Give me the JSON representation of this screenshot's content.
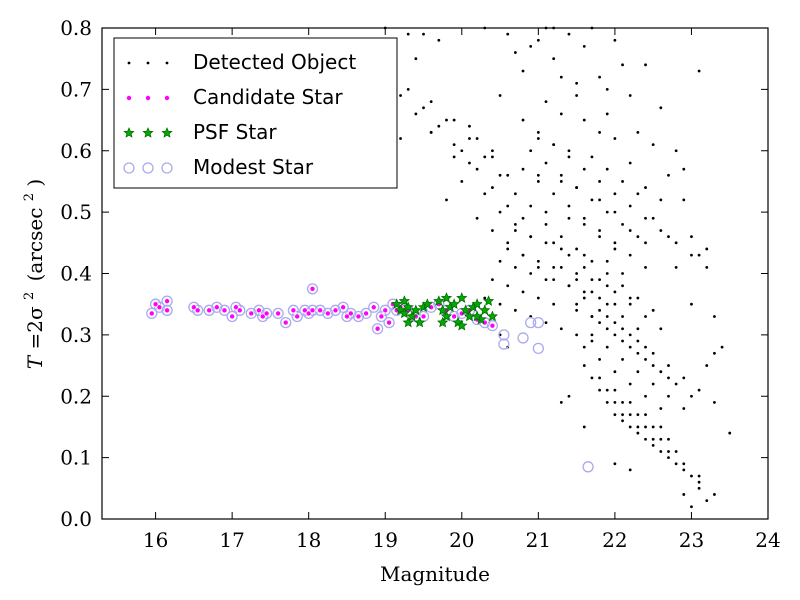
{
  "chart_data": {
    "type": "scatter",
    "xlabel": "Magnitude",
    "ylabel": {
      "main": "T",
      "equals": "=2σ",
      "sup": "2",
      "units": "(arcsec",
      "units_sup": "2",
      "units_close": ")"
    },
    "xlim": [
      15.3,
      24.0
    ],
    "ylim": [
      0.0,
      0.8
    ],
    "xticks": [
      16,
      17,
      18,
      19,
      20,
      21,
      22,
      23,
      24
    ],
    "yticks": [
      0.0,
      0.1,
      0.2,
      0.3,
      0.4,
      0.5,
      0.6,
      0.7,
      0.8
    ],
    "xtick_labels": [
      "16",
      "17",
      "18",
      "19",
      "20",
      "21",
      "22",
      "23",
      "24"
    ],
    "ytick_labels": [
      "0.0",
      "0.1",
      "0.2",
      "0.3",
      "0.4",
      "0.5",
      "0.6",
      "0.7",
      "0.8"
    ],
    "grid": false,
    "legend_position": "top-left",
    "series": [
      {
        "name": "Detected Object",
        "marker": "dot",
        "color": "#000000",
        "x": [
          19.0,
          19.1,
          19.1,
          19.2,
          19.3,
          19.4,
          19.5,
          19.6,
          19.7,
          19.9,
          20.1,
          20.3,
          20.4,
          20.5,
          20.6,
          20.7,
          20.8,
          20.9,
          21.0,
          21.1,
          21.2,
          21.4,
          21.5,
          21.7,
          21.9,
          22.0,
          22.2,
          22.4,
          22.6,
          22.8,
          23.1,
          22.9,
          23.0,
          23.2,
          23.3,
          23.4,
          23.5,
          21.2,
          21.3,
          21.5,
          21.6,
          21.8,
          21.9,
          22.1,
          22.3,
          22.5,
          22.7,
          22.9,
          23.1,
          23.3,
          21.1,
          21.3,
          21.6,
          21.8,
          22.0,
          22.2,
          22.4,
          22.6,
          22.8,
          23.0,
          23.2,
          21.0,
          21.2,
          21.4,
          21.7,
          21.9,
          22.1,
          22.3,
          22.5,
          22.7,
          20.8,
          21.0,
          21.3,
          21.5,
          21.8,
          22.0,
          22.2,
          22.4,
          20.9,
          21.1,
          21.4,
          21.6,
          21.8,
          22.0,
          20.7,
          20.9,
          21.1,
          21.3,
          21.6,
          21.9,
          22.1,
          20.6,
          20.8,
          21.0,
          21.2,
          21.5,
          21.7,
          21.9,
          22.2,
          20.5,
          20.7,
          20.9,
          21.1,
          21.4,
          21.6,
          21.8,
          22.0,
          20.4,
          20.6,
          20.8,
          21.0,
          21.2,
          21.5,
          21.7,
          20.3,
          20.5,
          20.7,
          20.9,
          21.1,
          21.3,
          21.5,
          21.7,
          19.8,
          20.0,
          20.2,
          20.4,
          20.6,
          20.8,
          21.0,
          21.2,
          19.6,
          19.9,
          20.1,
          20.3,
          20.5,
          20.7,
          20.9,
          19.4,
          19.7,
          20.0,
          20.2,
          20.4,
          20.6,
          20.8,
          19.2,
          19.5,
          19.8,
          20.1,
          20.3,
          20.5,
          20.7,
          18.9,
          19.3,
          19.6,
          19.9,
          20.2,
          20.4,
          20.6,
          21.9,
          22.1,
          22.3,
          22.5,
          22.7,
          22.9,
          23.1,
          23.3,
          21.8,
          22.0,
          22.2,
          22.4,
          22.6,
          22.8,
          23.0,
          21.7,
          21.9,
          22.1,
          22.3,
          22.5,
          22.7,
          22.9,
          21.6,
          21.8,
          22.0,
          22.2,
          22.4,
          22.6,
          21.5,
          21.7,
          21.9,
          22.1,
          22.3,
          22.5,
          22.7,
          21.4,
          21.6,
          21.8,
          22.0,
          22.2,
          22.4,
          21.3,
          21.5,
          21.7,
          21.9,
          22.1,
          22.3,
          21.2,
          21.4,
          21.6,
          21.8,
          22.0,
          22.2,
          22.4,
          22.6,
          21.1,
          21.3,
          21.5,
          21.7,
          21.9,
          22.1,
          22.3,
          22.5,
          21.0,
          21.2,
          21.4,
          21.6,
          21.8,
          22.0,
          22.2,
          22.4,
          20.9,
          21.1,
          21.3,
          21.5,
          21.7,
          21.9,
          22.1,
          22.3,
          20.8,
          21.0,
          21.2,
          21.4,
          21.6,
          21.8,
          22.0,
          22.2,
          22.4,
          22.6,
          22.8,
          23.0,
          23.2,
          22.1,
          22.3,
          22.5,
          22.7,
          22.9,
          23.1,
          23.3,
          22.0,
          22.2,
          22.4,
          22.6,
          22.8,
          23.0,
          21.9,
          22.1,
          22.3,
          22.5,
          22.7,
          22.9,
          23.1,
          21.8,
          22.0,
          22.2,
          22.4,
          22.6,
          22.8,
          21.7,
          21.9,
          22.1,
          22.3,
          22.5,
          22.7,
          21.6,
          21.8,
          22.0,
          22.2,
          22.4,
          22.6,
          23.0,
          23.1,
          23.2,
          22.9,
          22.2,
          22.0,
          21.6,
          21.3,
          21.4,
          20.5,
          20.6
        ],
        "y": [
          0.8,
          0.7,
          0.58,
          0.62,
          0.79,
          0.75,
          0.79,
          0.63,
          0.78,
          0.59,
          0.64,
          0.8,
          0.6,
          0.69,
          0.79,
          0.76,
          0.73,
          0.77,
          0.78,
          0.8,
          0.8,
          0.79,
          0.71,
          0.8,
          0.7,
          0.78,
          0.69,
          0.74,
          0.67,
          0.6,
          0.73,
          0.57,
          0.46,
          0.44,
          0.33,
          0.28,
          0.14,
          0.75,
          0.72,
          0.69,
          0.77,
          0.72,
          0.66,
          0.74,
          0.63,
          0.61,
          0.56,
          0.52,
          0.43,
          0.27,
          0.68,
          0.66,
          0.65,
          0.63,
          0.62,
          0.58,
          0.54,
          0.52,
          0.41,
          0.35,
          0.25,
          0.62,
          0.61,
          0.6,
          0.59,
          0.57,
          0.55,
          0.53,
          0.49,
          0.46,
          0.57,
          0.56,
          0.55,
          0.54,
          0.52,
          0.5,
          0.47,
          0.45,
          0.51,
          0.5,
          0.49,
          0.48,
          0.46,
          0.44,
          0.47,
          0.46,
          0.45,
          0.44,
          0.43,
          0.42,
          0.4,
          0.44,
          0.43,
          0.42,
          0.41,
          0.4,
          0.39,
          0.38,
          0.36,
          0.42,
          0.41,
          0.4,
          0.39,
          0.38,
          0.37,
          0.36,
          0.35,
          0.39,
          0.38,
          0.37,
          0.36,
          0.35,
          0.34,
          0.33,
          0.36,
          0.35,
          0.34,
          0.33,
          0.32,
          0.31,
          0.3,
          0.29,
          0.52,
          0.55,
          0.49,
          0.47,
          0.45,
          0.43,
          0.41,
          0.39,
          0.63,
          0.61,
          0.58,
          0.53,
          0.5,
          0.48,
          0.46,
          0.66,
          0.64,
          0.6,
          0.57,
          0.54,
          0.51,
          0.49,
          0.69,
          0.67,
          0.65,
          0.62,
          0.59,
          0.56,
          0.53,
          0.72,
          0.7,
          0.68,
          0.65,
          0.62,
          0.59,
          0.56,
          0.33,
          0.31,
          0.29,
          0.27,
          0.25,
          0.23,
          0.21,
          0.19,
          0.32,
          0.3,
          0.28,
          0.26,
          0.24,
          0.22,
          0.2,
          0.3,
          0.28,
          0.26,
          0.24,
          0.22,
          0.2,
          0.18,
          0.28,
          0.26,
          0.24,
          0.22,
          0.2,
          0.18,
          0.35,
          0.33,
          0.31,
          0.29,
          0.27,
          0.25,
          0.23,
          0.38,
          0.36,
          0.34,
          0.32,
          0.3,
          0.28,
          0.41,
          0.39,
          0.37,
          0.35,
          0.33,
          0.31,
          0.45,
          0.43,
          0.41,
          0.39,
          0.37,
          0.35,
          0.33,
          0.31,
          0.48,
          0.46,
          0.44,
          0.42,
          0.4,
          0.38,
          0.36,
          0.34,
          0.55,
          0.53,
          0.51,
          0.49,
          0.47,
          0.45,
          0.43,
          0.41,
          0.6,
          0.58,
          0.56,
          0.54,
          0.52,
          0.5,
          0.48,
          0.46,
          0.65,
          0.63,
          0.61,
          0.59,
          0.57,
          0.55,
          0.53,
          0.51,
          0.49,
          0.47,
          0.45,
          0.43,
          0.41,
          0.16,
          0.14,
          0.12,
          0.1,
          0.08,
          0.06,
          0.04,
          0.17,
          0.15,
          0.13,
          0.11,
          0.09,
          0.07,
          0.19,
          0.17,
          0.15,
          0.13,
          0.11,
          0.09,
          0.07,
          0.21,
          0.19,
          0.17,
          0.15,
          0.13,
          0.11,
          0.23,
          0.21,
          0.19,
          0.17,
          0.15,
          0.13,
          0.25,
          0.23,
          0.21,
          0.19,
          0.17,
          0.15,
          0.02,
          0.05,
          0.03,
          0.04,
          0.08,
          0.09,
          0.15,
          0.19,
          0.2,
          0.3,
          0.28
        ]
      },
      {
        "name": "Candidate Star",
        "marker": "circle",
        "color": "#ff00ff",
        "x": [
          15.95,
          16.0,
          16.05,
          16.15,
          16.15,
          16.5,
          16.55,
          16.7,
          16.8,
          16.9,
          17.0,
          17.05,
          17.1,
          17.25,
          17.35,
          17.4,
          17.45,
          17.6,
          17.7,
          17.8,
          17.85,
          17.95,
          18.0,
          18.05,
          18.15,
          18.25,
          18.35,
          18.45,
          18.5,
          18.55,
          18.65,
          18.75,
          18.85,
          18.9,
          18.95,
          19.0,
          19.05,
          19.1,
          19.15,
          19.2,
          19.3,
          19.4,
          19.5,
          19.6,
          19.7,
          19.8,
          19.9,
          20.0,
          20.1,
          20.2,
          20.3,
          20.4,
          18.05
        ],
        "y": [
          0.335,
          0.35,
          0.345,
          0.355,
          0.34,
          0.345,
          0.34,
          0.34,
          0.345,
          0.34,
          0.33,
          0.345,
          0.34,
          0.335,
          0.34,
          0.33,
          0.335,
          0.335,
          0.32,
          0.34,
          0.33,
          0.34,
          0.335,
          0.34,
          0.34,
          0.335,
          0.34,
          0.345,
          0.33,
          0.335,
          0.33,
          0.335,
          0.345,
          0.31,
          0.33,
          0.34,
          0.32,
          0.35,
          0.34,
          0.345,
          0.34,
          0.33,
          0.33,
          0.345,
          0.35,
          0.34,
          0.33,
          0.335,
          0.34,
          0.325,
          0.32,
          0.315,
          0.375
        ]
      },
      {
        "name": "PSF Star",
        "marker": "star",
        "color": "#00aa00",
        "x": [
          19.15,
          19.2,
          19.25,
          19.3,
          19.35,
          19.4,
          19.45,
          19.5,
          19.55,
          19.7,
          19.75,
          19.8,
          19.85,
          19.9,
          19.95,
          20.0,
          20.05,
          20.1,
          20.15,
          20.2,
          20.25,
          20.3,
          20.35,
          20.4,
          19.3,
          19.8,
          20.0,
          20.2,
          19.25,
          19.75
        ],
        "y": [
          0.35,
          0.34,
          0.335,
          0.345,
          0.33,
          0.34,
          0.32,
          0.345,
          0.35,
          0.355,
          0.34,
          0.33,
          0.345,
          0.35,
          0.32,
          0.36,
          0.34,
          0.33,
          0.345,
          0.35,
          0.325,
          0.34,
          0.355,
          0.33,
          0.32,
          0.36,
          0.315,
          0.33,
          0.355,
          0.32
        ]
      },
      {
        "name": "Modest Star",
        "marker": "open-circle",
        "color": "#aaaaee",
        "x": [
          15.95,
          16.0,
          16.05,
          16.15,
          16.15,
          16.5,
          16.55,
          16.7,
          16.8,
          16.9,
          17.0,
          17.05,
          17.1,
          17.25,
          17.35,
          17.4,
          17.45,
          17.6,
          17.7,
          17.8,
          17.85,
          17.95,
          18.0,
          18.05,
          18.15,
          18.25,
          18.35,
          18.45,
          18.5,
          18.55,
          18.65,
          18.75,
          18.85,
          18.9,
          18.95,
          19.0,
          19.05,
          19.1,
          19.15,
          19.2,
          19.3,
          19.4,
          19.5,
          19.6,
          19.7,
          19.8,
          19.9,
          20.0,
          20.1,
          20.2,
          20.3,
          20.4,
          18.05,
          20.55,
          20.55,
          20.8,
          20.9,
          21.0,
          21.0,
          21.65
        ],
        "y": [
          0.335,
          0.35,
          0.345,
          0.355,
          0.34,
          0.345,
          0.34,
          0.34,
          0.345,
          0.34,
          0.33,
          0.345,
          0.34,
          0.335,
          0.34,
          0.33,
          0.335,
          0.335,
          0.32,
          0.34,
          0.33,
          0.34,
          0.335,
          0.34,
          0.34,
          0.335,
          0.34,
          0.345,
          0.33,
          0.335,
          0.33,
          0.335,
          0.345,
          0.31,
          0.33,
          0.34,
          0.32,
          0.35,
          0.34,
          0.345,
          0.34,
          0.33,
          0.33,
          0.345,
          0.35,
          0.34,
          0.33,
          0.335,
          0.34,
          0.325,
          0.32,
          0.315,
          0.375,
          0.3,
          0.285,
          0.295,
          0.32,
          0.32,
          0.278,
          0.085
        ]
      }
    ]
  }
}
